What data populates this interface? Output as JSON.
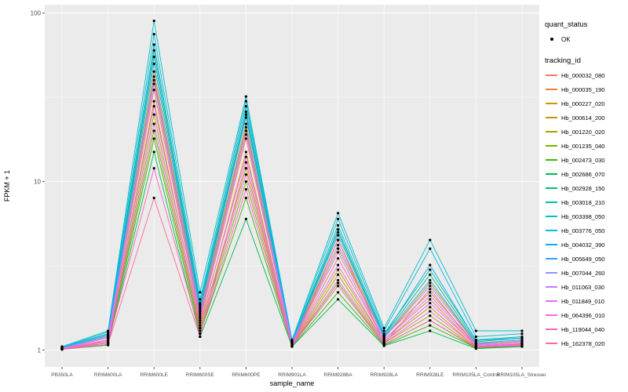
{
  "figure": {
    "xlabel": "sample_name",
    "ylabel": "FPKM + 1",
    "y_tick_labels": [
      "100",
      "10",
      "1"
    ],
    "panel_color": "#EBEBEB",
    "grid_color": "#FFFFFF",
    "point_color": "#000000"
  },
  "legend": {
    "quant_status_title": "quant_status",
    "quant_status_items": [
      {
        "label": "OK",
        "marker": "point",
        "color": "#000000"
      }
    ],
    "tracking_id_title": "tracking_id"
  },
  "chart_data": {
    "type": "line",
    "title": "",
    "x_axis": "sample_name",
    "y_axis": "FPKM + 1",
    "y_scale": "log10",
    "ylim": [
      1,
      100
    ],
    "grid": true,
    "legend_position": "right",
    "quant_status": "OK",
    "categories": [
      "PB350LA",
      "RRIM600LA",
      "RRIM600LE",
      "RRIM600SE",
      "RRIM600PE",
      "RRIM901LA",
      "RRIM928BA",
      "RRIM928LA",
      "RRIM928LE",
      "RRIM105LA_Control",
      "RRIM105LA_Stressed"
    ],
    "series": [
      {
        "name": "Hb_000032_080",
        "color": "#F8766D",
        "values": [
          1.02,
          1.15,
          35,
          1.5,
          18,
          1.08,
          3.5,
          1.15,
          2.0,
          1.05,
          1.1
        ]
      },
      {
        "name": "Hb_000035_190",
        "color": "#EA8331",
        "values": [
          1.03,
          1.18,
          40,
          1.6,
          20,
          1.1,
          4.0,
          1.2,
          2.2,
          1.08,
          1.12
        ]
      },
      {
        "name": "Hb_000227_020",
        "color": "#D89000",
        "values": [
          1.02,
          1.12,
          30,
          1.4,
          15,
          1.07,
          3.0,
          1.12,
          1.8,
          1.04,
          1.08
        ]
      },
      {
        "name": "Hb_000614_200",
        "color": "#C09B00",
        "values": [
          1.03,
          1.2,
          45,
          1.7,
          22,
          1.1,
          4.5,
          1.18,
          2.5,
          1.1,
          1.15
        ]
      },
      {
        "name": "Hb_001220_020",
        "color": "#A3A500",
        "values": [
          1.02,
          1.1,
          25,
          1.35,
          12,
          1.06,
          2.8,
          1.1,
          1.6,
          1.04,
          1.07
        ]
      },
      {
        "name": "Hb_001235_040",
        "color": "#7CAE00",
        "values": [
          1.01,
          1.1,
          20,
          1.3,
          10,
          1.06,
          2.5,
          1.08,
          1.5,
          1.03,
          1.06
        ]
      },
      {
        "name": "Hb_002473_030",
        "color": "#39B600",
        "values": [
          1.01,
          1.08,
          18,
          1.25,
          8,
          1.05,
          2.2,
          1.07,
          1.4,
          1.03,
          1.05
        ]
      },
      {
        "name": "Hb_002686_070",
        "color": "#00BB4E",
        "values": [
          1.01,
          1.07,
          15,
          1.2,
          6,
          1.05,
          2.0,
          1.06,
          1.3,
          1.02,
          1.05
        ]
      },
      {
        "name": "Hb_002928_150",
        "color": "#00BF7D",
        "values": [
          1.03,
          1.22,
          55,
          1.8,
          25,
          1.12,
          5.0,
          1.22,
          2.8,
          1.12,
          1.18
        ]
      },
      {
        "name": "Hb_003018_210",
        "color": "#00C1A3",
        "values": [
          1.04,
          1.25,
          65,
          1.9,
          28,
          1.12,
          5.5,
          1.25,
          3.0,
          1.15,
          1.2
        ]
      },
      {
        "name": "Hb_003398_050",
        "color": "#00BFC4",
        "values": [
          1.05,
          1.3,
          90,
          2.2,
          32,
          1.15,
          6.5,
          1.35,
          4.5,
          1.3,
          1.3
        ]
      },
      {
        "name": "Hb_003776_050",
        "color": "#00BAE0",
        "values": [
          1.04,
          1.28,
          75,
          2.0,
          30,
          1.14,
          6.0,
          1.3,
          4.0,
          1.2,
          1.25
        ]
      },
      {
        "name": "Hb_004032_390",
        "color": "#00B0F6",
        "values": [
          1.04,
          1.24,
          60,
          1.85,
          26,
          1.12,
          5.2,
          1.22,
          3.2,
          1.14,
          1.18
        ]
      },
      {
        "name": "Hb_005649_050",
        "color": "#35A2FF",
        "values": [
          1.03,
          1.22,
          50,
          1.75,
          24,
          1.11,
          4.8,
          1.2,
          2.6,
          1.1,
          1.15
        ]
      },
      {
        "name": "Hb_007044_260",
        "color": "#9590FF",
        "values": [
          1.03,
          1.2,
          42,
          1.65,
          21,
          1.1,
          4.2,
          1.18,
          2.4,
          1.09,
          1.13
        ]
      },
      {
        "name": "Hb_011063_030",
        "color": "#C77CFF",
        "values": [
          1.02,
          1.18,
          38,
          1.55,
          19,
          1.09,
          3.8,
          1.15,
          2.1,
          1.07,
          1.1
        ]
      },
      {
        "name": "Hb_011849_010",
        "color": "#E76BF3",
        "values": [
          1.02,
          1.14,
          28,
          1.45,
          14,
          1.08,
          3.2,
          1.12,
          1.9,
          1.06,
          1.09
        ]
      },
      {
        "name": "Hb_064396_010",
        "color": "#FA62DB",
        "values": [
          1.02,
          1.12,
          22,
          1.35,
          11,
          1.07,
          2.6,
          1.1,
          1.7,
          1.05,
          1.08
        ]
      },
      {
        "name": "Hb_119044_040",
        "color": "#FF62BC",
        "values": [
          1.01,
          1.1,
          12,
          1.25,
          9,
          1.06,
          2.4,
          1.08,
          1.5,
          1.04,
          1.06
        ]
      },
      {
        "name": "Hb_162378_020",
        "color": "#FF6A98",
        "values": [
          1.01,
          1.08,
          8,
          1.2,
          13,
          1.05,
          4.5,
          1.09,
          2.3,
          1.04,
          1.07
        ]
      }
    ]
  }
}
